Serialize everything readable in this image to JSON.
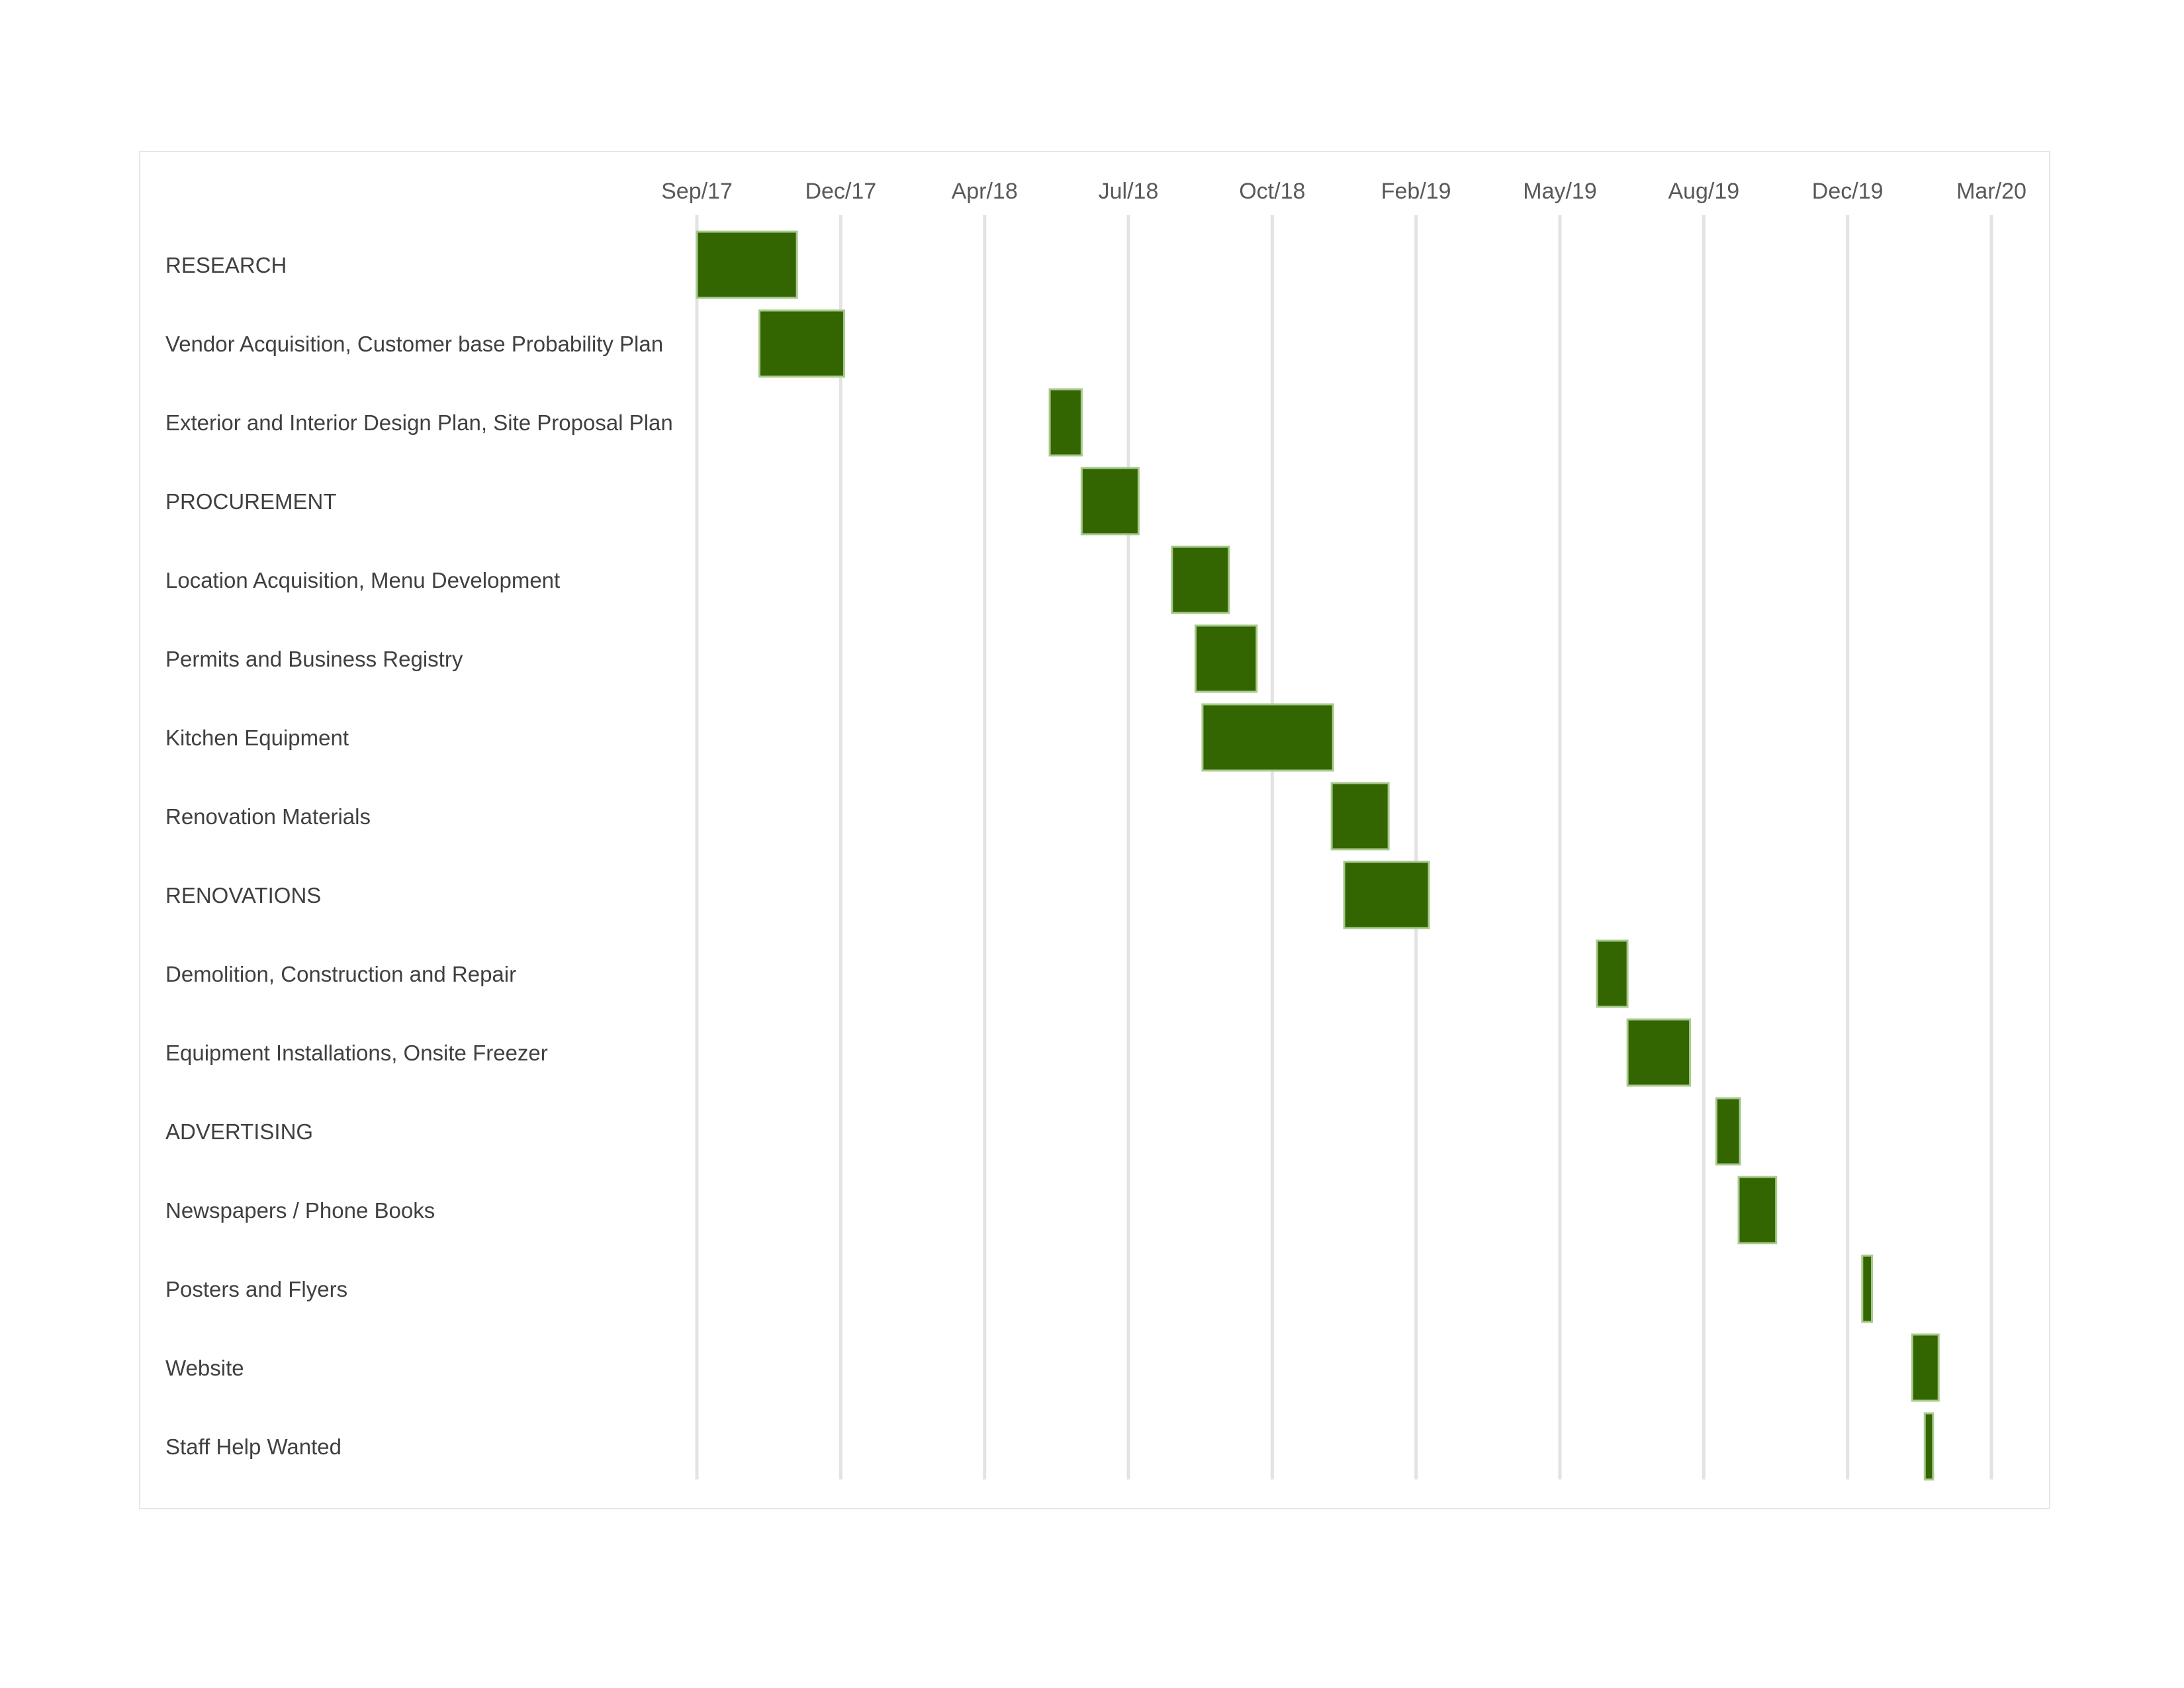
{
  "chart_data": {
    "type": "bar",
    "orientation": "horizontal",
    "subtype": "gantt",
    "title": "",
    "xlabel": "",
    "ylabel": "",
    "x_ticks": [
      "Sep/17",
      "Dec/17",
      "Apr/18",
      "Jul/18",
      "Oct/18",
      "Feb/19",
      "May/19",
      "Aug/19",
      "Dec/19",
      "Mar/20"
    ],
    "xlim": [
      "2017-08-31",
      "2020-03-20"
    ],
    "grid": "vertical",
    "legend": "none",
    "bar_color": "#336600",
    "bar_edge_color": "#a9c98d",
    "tasks": [
      {
        "name": "RESEARCH",
        "start": "2017-08-31",
        "end": "2017-11-11"
      },
      {
        "name": "Vendor Acquisition, Customer base Probability Plan",
        "start": "2017-10-15",
        "end": "2017-12-15"
      },
      {
        "name": "Exterior and Interior Design Plan, Site Proposal Plan",
        "start": "2018-05-12",
        "end": "2018-06-04"
      },
      {
        "name": "PROCUREMENT",
        "start": "2018-06-04",
        "end": "2018-07-15"
      },
      {
        "name": "Location Acquisition, Menu Development",
        "start": "2018-08-08",
        "end": "2018-09-18"
      },
      {
        "name": "Permits and Business Registry",
        "start": "2018-08-25",
        "end": "2018-10-08"
      },
      {
        "name": "Kitchen Equipment",
        "start": "2018-08-30",
        "end": "2018-12-02"
      },
      {
        "name": "Renovation Materials",
        "start": "2018-12-01",
        "end": "2019-01-11"
      },
      {
        "name": "RENOVATIONS",
        "start": "2018-12-10",
        "end": "2019-02-09"
      },
      {
        "name": "Demolition, Construction and Repair",
        "start": "2019-06-10",
        "end": "2019-07-02"
      },
      {
        "name": "Equipment Installations, Onsite Freezer",
        "start": "2019-07-02",
        "end": "2019-08-16"
      },
      {
        "name": "ADVERTISING",
        "start": "2019-09-04",
        "end": "2019-09-21"
      },
      {
        "name": "Newspapers / Phone Books",
        "start": "2019-09-20",
        "end": "2019-10-17"
      },
      {
        "name": "Posters and Flyers",
        "start": "2019-12-18",
        "end": "2019-12-25"
      },
      {
        "name": "Website",
        "start": "2020-01-23",
        "end": "2020-02-11"
      },
      {
        "name": "Staff Help Wanted",
        "start": "2020-02-01",
        "end": "2020-02-07"
      }
    ]
  }
}
